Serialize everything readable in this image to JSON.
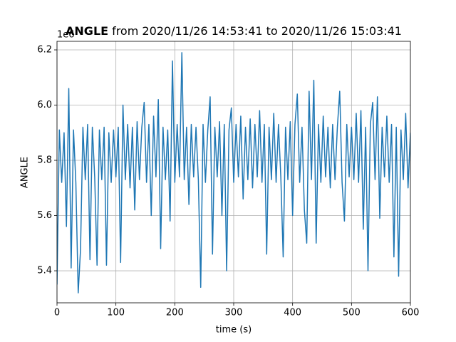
{
  "chart_data": {
    "type": "line",
    "title_bold": "ANGLE",
    "title_rest": "from 2020/11/26 14:53:41 to 2020/11/26 15:03:41",
    "x_label": "time (s)",
    "y_label": "ANGLE",
    "y_offset_text": "1e6",
    "xlim": [
      0,
      600
    ],
    "ylim": [
      5.284,
      6.231
    ],
    "xticks": [
      0,
      100,
      200,
      300,
      400,
      500,
      600
    ],
    "yticks": [
      5.4,
      5.6,
      5.8,
      {
        "value": 6,
        "label": "6.0"
      },
      6.2
    ],
    "grid": true,
    "x": [
      0,
      4,
      8,
      12,
      16,
      20,
      24,
      28,
      32,
      36,
      40,
      44,
      48,
      52,
      56,
      60,
      64,
      68,
      72,
      76,
      80,
      84,
      88,
      92,
      96,
      100,
      104,
      108,
      112,
      116,
      120,
      124,
      128,
      132,
      136,
      140,
      144,
      148,
      152,
      156,
      160,
      164,
      168,
      172,
      176,
      180,
      184,
      188,
      192,
      196,
      200,
      204,
      208,
      212,
      216,
      220,
      224,
      228,
      232,
      236,
      240,
      244,
      248,
      252,
      256,
      260,
      264,
      268,
      272,
      276,
      280,
      284,
      288,
      292,
      296,
      300,
      304,
      308,
      312,
      316,
      320,
      324,
      328,
      332,
      336,
      340,
      344,
      348,
      352,
      356,
      360,
      364,
      368,
      372,
      376,
      380,
      384,
      388,
      392,
      396,
      400,
      404,
      408,
      412,
      416,
      420,
      424,
      428,
      432,
      436,
      440,
      444,
      448,
      452,
      456,
      460,
      464,
      468,
      472,
      476,
      480,
      484,
      488,
      492,
      496,
      500,
      504,
      508,
      512,
      516,
      520,
      524,
      528,
      532,
      536,
      540,
      544,
      548,
      552,
      556,
      560,
      564,
      568,
      572,
      576,
      580,
      584,
      588,
      592,
      596,
      600
    ],
    "series": [
      {
        "color": "#1f77b4",
        "values": [
          5.35,
          5.91,
          5.72,
          5.9,
          5.56,
          6.06,
          5.41,
          5.91,
          5.72,
          5.32,
          5.48,
          5.92,
          5.73,
          5.93,
          5.44,
          5.92,
          5.74,
          5.42,
          5.91,
          5.73,
          5.92,
          5.42,
          5.9,
          5.72,
          5.91,
          5.74,
          5.92,
          5.43,
          6.0,
          5.73,
          5.93,
          5.7,
          5.92,
          5.62,
          5.94,
          5.73,
          5.92,
          6.01,
          5.72,
          5.93,
          5.6,
          5.96,
          5.74,
          6.02,
          5.48,
          5.92,
          5.73,
          5.91,
          5.58,
          6.16,
          5.72,
          5.93,
          5.74,
          6.19,
          5.73,
          5.92,
          5.64,
          5.93,
          5.74,
          5.92,
          5.73,
          5.34,
          5.93,
          5.72,
          5.91,
          6.03,
          5.46,
          5.92,
          5.74,
          5.94,
          5.6,
          5.93,
          5.4,
          5.91,
          5.99,
          5.72,
          5.93,
          5.74,
          5.96,
          5.66,
          5.92,
          5.73,
          5.95,
          5.7,
          5.93,
          5.74,
          5.98,
          5.72,
          5.93,
          5.46,
          5.92,
          5.73,
          5.97,
          5.72,
          5.93,
          5.74,
          5.45,
          5.92,
          5.73,
          5.94,
          5.6,
          5.93,
          6.04,
          5.72,
          5.92,
          5.62,
          5.5,
          6.05,
          5.73,
          6.09,
          5.5,
          5.93,
          5.72,
          5.96,
          5.74,
          5.92,
          5.7,
          5.93,
          5.73,
          5.92,
          6.05,
          5.72,
          5.58,
          5.93,
          5.74,
          5.92,
          5.73,
          5.97,
          5.72,
          5.98,
          5.55,
          5.92,
          5.4,
          5.93,
          6.01,
          5.73,
          6.03,
          5.59,
          5.92,
          5.74,
          5.96,
          5.72,
          5.93,
          5.45,
          5.92,
          5.38,
          5.91,
          5.73,
          5.97,
          5.7,
          5.9
        ]
      }
    ]
  }
}
